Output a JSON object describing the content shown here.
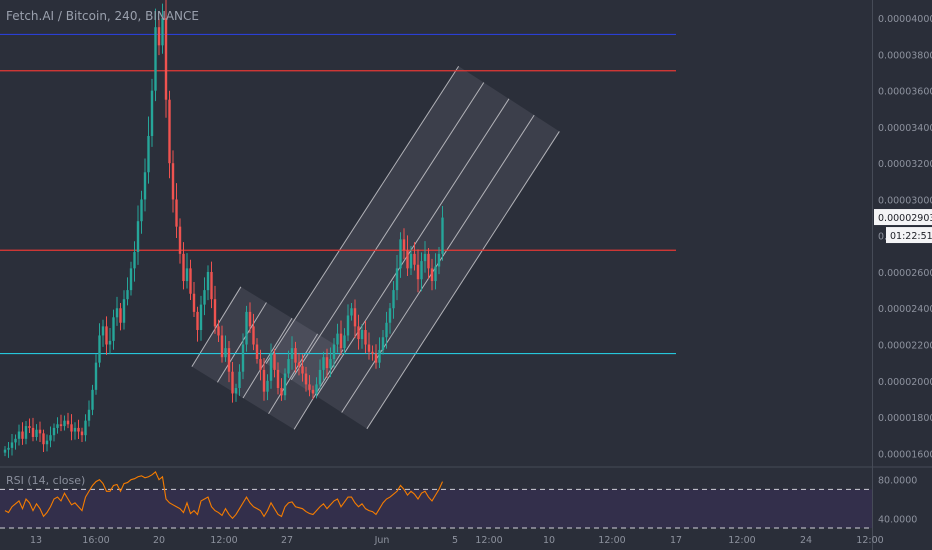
{
  "chart_data": {
    "type": "candlestick",
    "title": "Fetch.AI / Bitcoin, 240, BINANCE",
    "symbol": "Fetch.AI / Bitcoin",
    "interval": "240",
    "exchange": "BINANCE",
    "y_ticks": [
      "0.00001600",
      "0.00001800",
      "0.00002000",
      "0.00002200",
      "0.00002400",
      "0.00002600",
      "0.00002800",
      "0.00003000",
      "0.00003200",
      "0.00003400",
      "0.00003600",
      "0.00003800",
      "0.00004000"
    ],
    "ylim": [
      1.53e-05,
      4.1e-05
    ],
    "x_ticks": [
      "13",
      "16:00",
      "20",
      "12:00",
      "27",
      "Jun",
      "5",
      "12:00",
      "10",
      "12:00",
      "17",
      "12:00",
      "24",
      "12:00"
    ],
    "last_price": "0.00002903",
    "countdown": "01:22:51",
    "closes": [
      1.62e-05,
      1.63e-05,
      1.66e-05,
      1.68e-05,
      1.72e-05,
      1.68e-05,
      1.75e-05,
      1.74e-05,
      1.69e-05,
      1.73e-05,
      1.71e-05,
      1.65e-05,
      1.67e-05,
      1.7e-05,
      1.74e-05,
      1.76e-05,
      1.75e-05,
      1.78e-05,
      1.76e-05,
      1.72e-05,
      1.74e-05,
      1.72e-05,
      1.7e-05,
      1.78e-05,
      1.84e-05,
      1.95e-05,
      2.1e-05,
      2.25e-05,
      2.3e-05,
      2.2e-05,
      2.22e-05,
      2.35e-05,
      2.4e-05,
      2.32e-05,
      2.45e-05,
      2.5e-05,
      2.62e-05,
      2.71e-05,
      2.88e-05,
      3e-05,
      3.15e-05,
      3.35e-05,
      3.6e-05,
      3.95e-05,
      3.85e-05,
      4e-05,
      3.55e-05,
      3.2e-05,
      3e-05,
      2.85e-05,
      2.7e-05,
      2.55e-05,
      2.62e-05,
      2.48e-05,
      2.38e-05,
      2.28e-05,
      2.42e-05,
      2.5e-05,
      2.6e-05,
      2.45e-05,
      2.3e-05,
      2.25e-05,
      2.13e-05,
      2.18e-05,
      2.05e-05,
      1.93e-05,
      1.96e-05,
      2.05e-05,
      2.2e-05,
      2.38e-05,
      2.3e-05,
      2.2e-05,
      2.12e-05,
      2.06e-05,
      1.94e-05,
      2e-05,
      2.15e-05,
      2.06e-05,
      1.96e-05,
      1.92e-05,
      2.04e-05,
      2.12e-05,
      2.18e-05,
      2.1e-05,
      2.08e-05,
      2.04e-05,
      1.98e-05,
      1.95e-05,
      1.93e-05,
      1.98e-05,
      2.06e-05,
      2.13e-05,
      2.07e-05,
      2.12e-05,
      2.2e-05,
      2.26e-05,
      2.18e-05,
      2.25e-05,
      2.36e-05,
      2.4e-05,
      2.3e-05,
      2.23e-05,
      2.28e-05,
      2.2e-05,
      2.16e-05,
      2.15e-05,
      2.1e-05,
      2.17e-05,
      2.24e-05,
      2.32e-05,
      2.4e-05,
      2.5e-05,
      2.62e-05,
      2.78e-05,
      2.72e-05,
      2.62e-05,
      2.7e-05,
      2.64e-05,
      2.56e-05,
      2.66e-05,
      2.7e-05,
      2.62e-05,
      2.55e-05,
      2.63e-05,
      2.7e-05,
      2.9e-05
    ],
    "support_resistance_lines": [
      {
        "price": 3.91e-05,
        "color": "#2a3fd4"
      },
      {
        "price": 3.71e-05,
        "color": "#e53935"
      },
      {
        "price": 2.72e-05,
        "color": "#e53935"
      },
      {
        "price": 2.15e-05,
        "color": "#26c6da"
      }
    ],
    "channels": [
      {
        "start": {
          "bar": 68,
          "price": 1.905e-05
        },
        "end": {
          "bar": 82,
          "price": 2.345e-05
        }
      },
      {
        "start": {
          "bar": 89,
          "price": 1.915e-05
        },
        "end": {
          "bar": 144,
          "price": 3.555e-05
        }
      }
    ],
    "rsi": {
      "label": "RSI (14, close)",
      "y_ticks": [
        "80.0000",
        "40.0000"
      ],
      "ylim": [
        30,
        90
      ],
      "values": [
        48,
        46,
        52,
        55,
        58,
        50,
        60,
        56,
        48,
        55,
        50,
        42,
        46,
        52,
        60,
        62,
        58,
        66,
        60,
        54,
        56,
        52,
        48,
        62,
        68,
        74,
        78,
        80,
        76,
        68,
        68,
        74,
        75,
        68,
        76,
        77,
        80,
        81,
        83,
        84,
        82,
        83,
        85,
        88,
        80,
        83,
        60,
        56,
        54,
        52,
        50,
        46,
        56,
        45,
        48,
        44,
        58,
        60,
        62,
        52,
        48,
        46,
        43,
        50,
        44,
        40,
        44,
        50,
        56,
        62,
        56,
        52,
        50,
        48,
        42,
        48,
        56,
        50,
        44,
        42,
        52,
        56,
        57,
        52,
        51,
        50,
        47,
        45,
        44,
        48,
        52,
        55,
        50,
        54,
        58,
        60,
        52,
        57,
        62,
        62,
        56,
        52,
        55,
        50,
        48,
        47,
        44,
        50,
        56,
        60,
        62,
        65,
        68,
        74,
        70,
        64,
        68,
        65,
        60,
        66,
        68,
        62,
        58,
        64,
        70,
        78
      ]
    },
    "colors": {
      "up": "#26a69a",
      "down": "#ef5350",
      "rsi_line": "#f57c00",
      "rsi_band": "#3a2f5a",
      "background": "#2b2f3a"
    }
  }
}
